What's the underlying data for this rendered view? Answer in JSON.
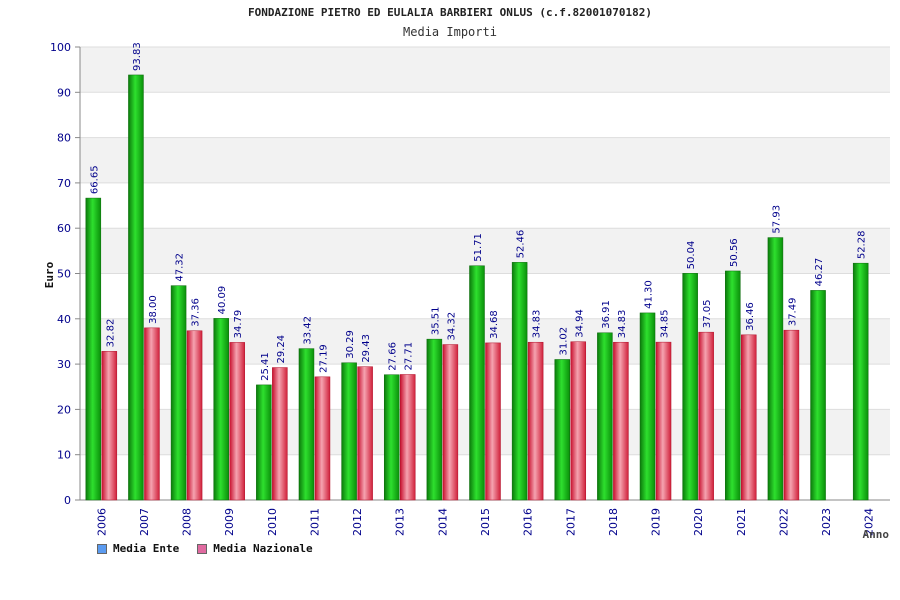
{
  "chart_data": {
    "type": "bar",
    "title": "FONDAZIONE PIETRO ED EULALIA BARBIERI ONLUS (c.f.82001070182)",
    "subtitle": "Media Importi",
    "ylabel": "Euro",
    "xlabel": "Anno",
    "ylim": [
      0,
      100
    ],
    "yticks": [
      0,
      10,
      20,
      30,
      40,
      50,
      60,
      70,
      80,
      90,
      100
    ],
    "grid": true,
    "categories": [
      "2006",
      "2007",
      "2008",
      "2009",
      "2010",
      "2011",
      "2012",
      "2013",
      "2014",
      "2015",
      "2016",
      "2017",
      "2018",
      "2019",
      "2020",
      "2021",
      "2022",
      "2023",
      "2024"
    ],
    "series": [
      {
        "name": "Media Ente",
        "color": "#1fbf1f",
        "values": [
          66.65,
          93.83,
          47.32,
          40.09,
          25.41,
          33.42,
          30.29,
          27.66,
          35.51,
          51.71,
          52.46,
          31.02,
          36.91,
          41.3,
          50.04,
          50.56,
          57.93,
          46.27,
          52.28
        ]
      },
      {
        "name": "Media Nazionale",
        "color": "#e8394a",
        "values": [
          32.82,
          38.0,
          37.36,
          34.79,
          29.24,
          27.19,
          29.43,
          27.71,
          34.32,
          34.68,
          34.83,
          34.94,
          34.83,
          34.85,
          37.05,
          36.46,
          37.49,
          null,
          null
        ]
      }
    ],
    "labels": {
      "Media Ente": [
        "66.65",
        "93.83",
        "47.32",
        "40.09",
        "25.41",
        "33.42",
        "30.29",
        "27.66",
        "35.51",
        "51.71",
        "52.46",
        "31.02",
        "36.91",
        "41.30",
        "50.04",
        "50.56",
        "57.93",
        "46.27",
        "52.28"
      ],
      "Media Nazionale": [
        "32.82",
        "38.00",
        "37.36",
        "34.79",
        "29.24",
        "27.19",
        "29.43",
        "27.71",
        "34.32",
        "34.68",
        "34.83",
        "34.94",
        "34.83",
        "34.85",
        "37.05",
        "36.46",
        "37.49",
        "",
        ""
      ]
    },
    "legend": [
      {
        "label": "Media Ente",
        "color": "#5b9bf0"
      },
      {
        "label": "Media Nazionale",
        "color": "#e06aa0"
      }
    ],
    "legend_position": "bottom-left",
    "colors": {
      "axis_text": "#00008b",
      "band": "#f2f2f2",
      "grid": "#dddddd"
    }
  }
}
